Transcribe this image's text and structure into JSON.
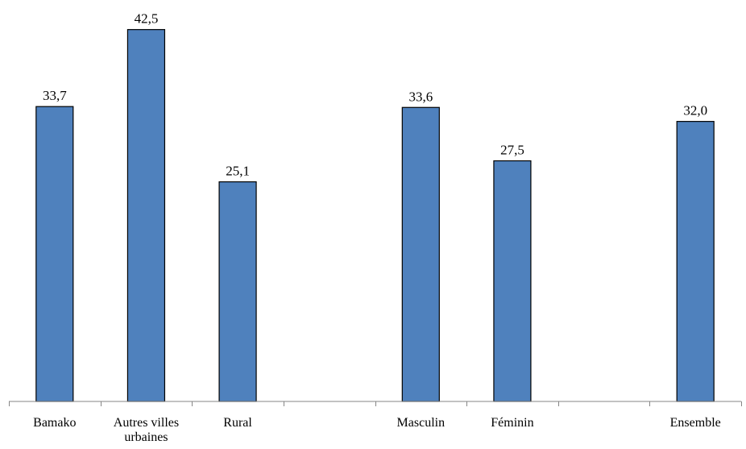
{
  "chart_data": {
    "type": "bar",
    "categories": [
      "Bamako",
      "Autres villes urbaines",
      "Rural",
      "",
      "Masculin",
      "Féminin",
      "",
      "Ensemble"
    ],
    "category_lines": [
      [
        "Bamako"
      ],
      [
        "Autres villes",
        "urbaines"
      ],
      [
        "Rural"
      ],
      [],
      [
        "Masculin"
      ],
      [
        "Féminin"
      ],
      [],
      [
        "Ensemble"
      ]
    ],
    "values": [
      33.7,
      42.5,
      25.1,
      null,
      33.6,
      27.5,
      null,
      32.0
    ],
    "value_labels": [
      "33,7",
      "42,5",
      "25,1",
      "",
      "33,6",
      "27,5",
      "",
      "32,0"
    ],
    "title": "",
    "xlabel": "",
    "ylabel": "",
    "ylim": [
      0,
      44
    ],
    "grid": false,
    "legend": "none",
    "colors": {
      "bar_fill": "#4f81bd",
      "bar_stroke": "#000000",
      "axis": "#868686"
    }
  }
}
